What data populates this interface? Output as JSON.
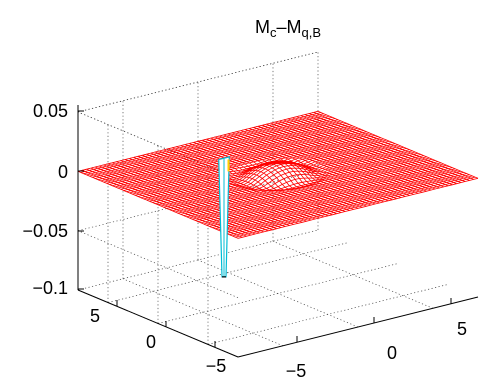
{
  "chart_data": {
    "type": "surface",
    "title": {
      "main": "M",
      "sub1": "c",
      "dash": "–M",
      "sub2": "q,B"
    },
    "xlabel": "",
    "ylabel": "",
    "zlabel": "",
    "xlim": [
      -8,
      8
    ],
    "ylim": [
      -8,
      8
    ],
    "zlim": [
      -0.1,
      0.05
    ],
    "x_ticks": [
      "−5",
      "0",
      "5"
    ],
    "y_ticks": [
      "−5",
      "0",
      "5"
    ],
    "z_ticks": [
      "0.05",
      "0",
      "−0.05",
      "−0.1"
    ],
    "grid": true,
    "colors": {
      "mesh": "#ff0000",
      "spike": "#00bcd4",
      "spike_tip": "#ffd200",
      "axes": "#000000",
      "grid": "#444444"
    },
    "features": {
      "baseline": 0,
      "dome": {
        "center": [
          0,
          0
        ],
        "radius": 2,
        "peak": 0.01
      },
      "spike": {
        "x": -0.6,
        "y": 4.5,
        "min": -0.1
      }
    }
  }
}
